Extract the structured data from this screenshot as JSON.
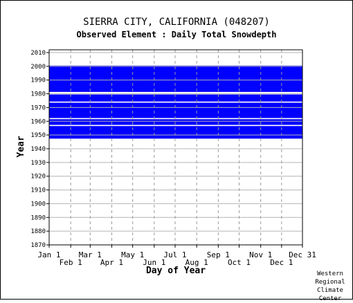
{
  "title": "SIERRA CITY, CALIFORNIA   (048207)",
  "subtitle": "Observed Element : Daily Total Snowdepth",
  "credit": [
    "Western",
    "Regional",
    "Climate",
    "Center"
  ],
  "chart_data": {
    "type": "heatmap",
    "title": "SIERRA CITY, CALIFORNIA   (048207)",
    "subtitle": "Observed Element : Daily Total Snowdepth",
    "xlabel": "Day of Year",
    "ylabel": "Year",
    "xlim": [
      1,
      365
    ],
    "ylim": [
      1870,
      2012
    ],
    "grid": true,
    "legend": "none",
    "series_color": "#0000ff",
    "x_ticks_upper": [
      {
        "label": "Jan 1",
        "day": 1
      },
      {
        "label": "Mar 1",
        "day": 60
      },
      {
        "label": "May 1",
        "day": 121
      },
      {
        "label": "Jul 1",
        "day": 182
      },
      {
        "label": "Sep 1",
        "day": 244
      },
      {
        "label": "Nov 1",
        "day": 305
      },
      {
        "label": "Dec 31",
        "day": 365
      }
    ],
    "x_ticks_lower": [
      {
        "label": "Feb 1",
        "day": 32
      },
      {
        "label": "Apr 1",
        "day": 91
      },
      {
        "label": "Jun 1",
        "day": 152
      },
      {
        "label": "Aug 1",
        "day": 213
      },
      {
        "label": "Oct 1",
        "day": 274
      },
      {
        "label": "Dec 1",
        "day": 335
      }
    ],
    "y_ticks": [
      1870,
      1880,
      1890,
      1900,
      1910,
      1920,
      1930,
      1940,
      1950,
      1960,
      1970,
      1980,
      1990,
      2000,
      2010
    ],
    "data_coverage": [
      {
        "years": [
          1948,
          2000
        ],
        "days": [
          1,
          365
        ],
        "description": "years with observations (blue)"
      }
    ],
    "missing_years": [
      1957,
      1962,
      1974,
      1980,
      1981
    ]
  }
}
